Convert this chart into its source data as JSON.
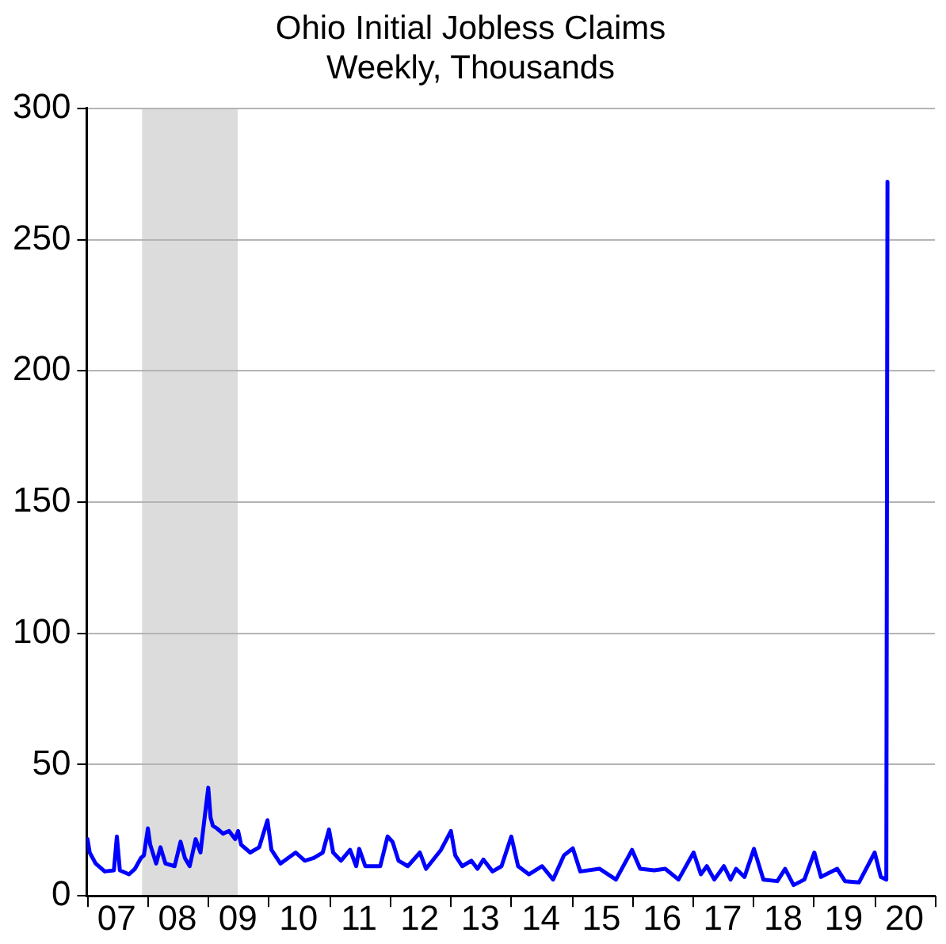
{
  "chart_data": {
    "type": "line",
    "title": "Ohio Initial Jobless Claims",
    "subtitle": "Weekly, Thousands",
    "x": [
      "2007-01-06",
      "2007-01-19",
      "2007-02-24",
      "2007-04-20",
      "2007-06-14",
      "2007-07-02",
      "2007-07-20",
      "2007-09-13",
      "2007-10-19",
      "2007-11-24",
      "2007-12-12",
      "2008-01-05",
      "2008-01-19",
      "2008-02-24",
      "2008-03-21",
      "2008-04-20",
      "2008-06-14",
      "2008-07-20",
      "2008-08-15",
      "2008-09-13",
      "2008-10-19",
      "2008-11-17",
      "2008-12-12",
      "2009-01-03",
      "2009-01-17",
      "2009-01-31",
      "2009-02-24",
      "2009-04-02",
      "2009-05-08",
      "2009-06-14",
      "2009-07-02",
      "2009-07-20",
      "2009-09-13",
      "2009-11-06",
      "2009-12-26",
      "2010-01-19",
      "2010-03-14",
      "2010-06-14",
      "2010-08-08",
      "2010-10-01",
      "2010-11-24",
      "2011-01-01",
      "2011-01-26",
      "2011-03-14",
      "2011-05-08",
      "2011-06-14",
      "2011-07-02",
      "2011-08-08",
      "2011-11-06",
      "2011-12-20",
      "2012-01-19",
      "2012-02-24",
      "2012-04-20",
      "2012-07-02",
      "2012-08-08",
      "2012-11-06",
      "2013-01-05",
      "2013-01-31",
      "2013-03-14",
      "2013-05-08",
      "2013-06-14",
      "2013-07-20",
      "2013-09-13",
      "2013-11-06",
      "2014-01-04",
      "2014-02-14",
      "2014-04-20",
      "2014-07-09",
      "2014-09-13",
      "2014-11-17",
      "2015-01-10",
      "2015-02-24",
      "2015-06-21",
      "2015-09-27",
      "2016-01-02",
      "2016-02-20",
      "2016-05-15",
      "2016-07-20",
      "2016-10-08",
      "2017-01-07",
      "2017-02-20",
      "2017-03-28",
      "2017-05-12",
      "2017-07-09",
      "2017-08-18",
      "2017-09-20",
      "2017-11-10",
      "2018-01-06",
      "2018-03-04",
      "2018-05-27",
      "2018-07-13",
      "2018-09-02",
      "2018-11-06",
      "2019-01-05",
      "2019-02-14",
      "2019-05-23",
      "2019-07-09",
      "2019-10-01",
      "2020-01-04",
      "2020-02-10",
      "2020-03-14",
      "2020-03-21"
    ],
    "series": [
      {
        "color": "#0000ff",
        "values": [
          21.6,
          16.5,
          12.3,
          9.3,
          9.7,
          22.6,
          9.7,
          8.2,
          10.3,
          14.4,
          15.4,
          25.7,
          19.5,
          12.3,
          18.5,
          12.3,
          11.3,
          20.6,
          14.4,
          11.3,
          21.6,
          16.5,
          29.8,
          41.2,
          29.8,
          26.7,
          25.7,
          23.7,
          24.7,
          21.6,
          24.7,
          19.5,
          16.5,
          18.5,
          28.8,
          17.5,
          12.3,
          16.5,
          13.4,
          14.4,
          16.5,
          25.3,
          16.5,
          13.4,
          17.5,
          11.3,
          17.9,
          11.3,
          11.3,
          22.6,
          20.6,
          13.4,
          11.3,
          16.5,
          10.3,
          17.5,
          24.7,
          15.4,
          11.3,
          13.4,
          10.3,
          13.8,
          9.3,
          11.3,
          22.6,
          11.3,
          8.2,
          11.3,
          6.2,
          15.4,
          18.1,
          9.3,
          10.3,
          6.2,
          17.5,
          10.3,
          9.7,
          10.3,
          6.2,
          16.5,
          8.2,
          11.3,
          6.2,
          11.3,
          6.2,
          10.3,
          7.2,
          17.9,
          6.2,
          5.6,
          10.3,
          4.1,
          6.2,
          16.5,
          7.2,
          10.3,
          5.6,
          5.1,
          16.5,
          7.2,
          6.2,
          272
        ]
      }
    ],
    "xlim": [
      "2007-01-01",
      "2021-01-01"
    ],
    "xticks": [
      {
        "value": "2007-01-01",
        "label": null
      },
      {
        "value": "2007-07-01",
        "label": "07"
      },
      {
        "value": "2008-01-01",
        "label": null
      },
      {
        "value": "2008-07-01",
        "label": "08"
      },
      {
        "value": "2009-01-01",
        "label": null
      },
      {
        "value": "2009-07-01",
        "label": "09"
      },
      {
        "value": "2010-01-01",
        "label": null
      },
      {
        "value": "2010-07-01",
        "label": "10"
      },
      {
        "value": "2011-01-01",
        "label": null
      },
      {
        "value": "2011-07-01",
        "label": "11"
      },
      {
        "value": "2012-01-01",
        "label": null
      },
      {
        "value": "2012-07-01",
        "label": "12"
      },
      {
        "value": "2013-01-01",
        "label": null
      },
      {
        "value": "2013-07-01",
        "label": "13"
      },
      {
        "value": "2014-01-01",
        "label": null
      },
      {
        "value": "2014-07-01",
        "label": "14"
      },
      {
        "value": "2015-01-01",
        "label": null
      },
      {
        "value": "2015-07-01",
        "label": "15"
      },
      {
        "value": "2016-01-01",
        "label": null
      },
      {
        "value": "2016-07-01",
        "label": "16"
      },
      {
        "value": "2017-01-01",
        "label": null
      },
      {
        "value": "2017-07-01",
        "label": "17"
      },
      {
        "value": "2018-01-01",
        "label": null
      },
      {
        "value": "2018-07-01",
        "label": "18"
      },
      {
        "value": "2019-01-01",
        "label": null
      },
      {
        "value": "2019-07-01",
        "label": "19"
      },
      {
        "value": "2020-01-01",
        "label": null
      },
      {
        "value": "2020-07-01",
        "label": "20"
      },
      {
        "value": "2021-01-01",
        "label": null
      }
    ],
    "ylim": [
      0,
      300
    ],
    "yticks": [
      0,
      50,
      100,
      150,
      200,
      250,
      300
    ],
    "bands": [
      {
        "axis": "x",
        "from": "2007-12-01",
        "to": "2009-06-30",
        "color": "#dcdcdc"
      }
    ],
    "grid": "y",
    "legend": false,
    "marker": "none",
    "line_style": "solid"
  }
}
